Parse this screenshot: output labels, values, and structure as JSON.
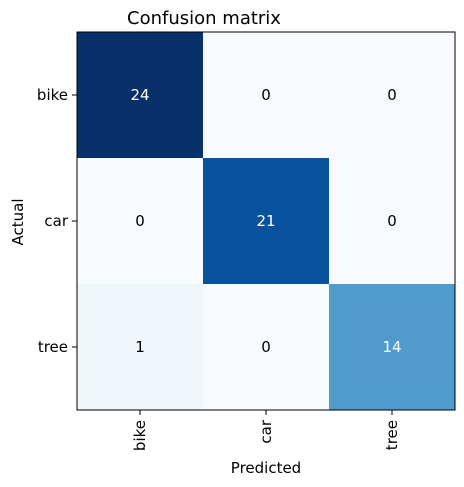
{
  "chart_data": {
    "type": "heatmap",
    "title": "Confusion matrix",
    "xlabel": "Predicted",
    "ylabel": "Actual",
    "x_categories": [
      "bike",
      "car",
      "tree"
    ],
    "y_categories": [
      "bike",
      "car",
      "tree"
    ],
    "values": [
      [
        24,
        0,
        0
      ],
      [
        0,
        21,
        0
      ],
      [
        1,
        0,
        14
      ]
    ],
    "value_range": [
      0,
      24
    ],
    "colormap": "Blues",
    "grid": false,
    "legend": "none"
  }
}
